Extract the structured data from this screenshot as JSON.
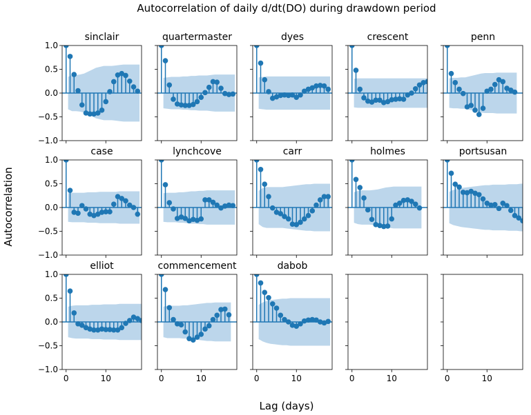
{
  "figure": {
    "suptitle": "Autocorrelation of daily d/dt(DO) during drawdown period",
    "supxlabel": "Lag (days)",
    "supylabel": "Autocorrelation"
  },
  "colors": {
    "stem": "#1f77b4",
    "band": "#a6c8e4",
    "axis": "#000000"
  },
  "chart_data": {
    "type": "acf-stem-grid",
    "rows": 3,
    "cols": 5,
    "xlim": [
      -1,
      19
    ],
    "ylim": [
      -1.0,
      1.0
    ],
    "xticks": [
      0,
      10
    ],
    "xtick_labels": [
      "0",
      "10"
    ],
    "yticks": [
      -1.0,
      -0.5,
      0.0,
      0.5,
      1.0
    ],
    "ytick_labels": [
      "−1.0",
      "−0.5",
      "0.0",
      "0.5",
      "1.0"
    ],
    "sharey": true,
    "panels": [
      {
        "title": "sinclair",
        "values": [
          1.0,
          0.77,
          0.39,
          0.05,
          -0.25,
          -0.42,
          -0.44,
          -0.44,
          -0.42,
          -0.36,
          -0.18,
          0.03,
          0.24,
          0.38,
          0.41,
          0.37,
          0.25,
          0.13,
          0.04
        ],
        "ci": [
          0.24,
          0.34,
          0.38,
          0.38,
          0.39,
          0.41,
          0.45,
          0.49,
          0.53,
          0.55,
          0.57,
          0.57,
          0.57,
          0.58,
          0.59,
          0.6,
          0.6,
          0.6,
          0.6
        ]
      },
      {
        "title": "quartermaster",
        "values": [
          1.0,
          0.68,
          0.17,
          -0.13,
          -0.23,
          -0.25,
          -0.26,
          -0.26,
          -0.24,
          -0.18,
          -0.09,
          0.01,
          0.12,
          0.24,
          0.23,
          0.1,
          -0.01,
          -0.03,
          -0.02
        ],
        "ci": [
          0.24,
          0.32,
          0.33,
          0.34,
          0.34,
          0.34,
          0.35,
          0.35,
          0.36,
          0.36,
          0.37,
          0.37,
          0.37,
          0.38,
          0.39,
          0.39,
          0.39,
          0.39,
          0.39
        ]
      },
      {
        "title": "dyes",
        "values": [
          1.0,
          0.63,
          0.28,
          0.03,
          -0.11,
          -0.08,
          -0.05,
          -0.04,
          -0.05,
          -0.04,
          -0.09,
          -0.04,
          0.04,
          0.08,
          0.11,
          0.15,
          0.16,
          0.15,
          0.08
        ],
        "ci": [
          0.24,
          0.33,
          0.34,
          0.35,
          0.35,
          0.35,
          0.35,
          0.35,
          0.35,
          0.35,
          0.35,
          0.35,
          0.35,
          0.35,
          0.35,
          0.35,
          0.35,
          0.35,
          0.35
        ]
      },
      {
        "title": "crescent",
        "values": [
          1.0,
          0.48,
          0.08,
          -0.1,
          -0.17,
          -0.19,
          -0.15,
          -0.15,
          -0.2,
          -0.18,
          -0.14,
          -0.13,
          -0.12,
          -0.13,
          -0.04,
          0.0,
          0.09,
          0.17,
          0.22,
          0.24
        ],
        "ci": [
          0.24,
          0.3,
          0.31,
          0.31,
          0.31,
          0.31,
          0.31,
          0.31,
          0.31,
          0.31,
          0.31,
          0.31,
          0.31,
          0.31,
          0.31,
          0.31,
          0.31,
          0.31,
          0.31,
          0.31
        ]
      },
      {
        "title": "penn",
        "values": [
          1.0,
          0.41,
          0.22,
          0.08,
          -0.01,
          -0.29,
          -0.26,
          -0.36,
          -0.45,
          -0.32,
          0.04,
          0.08,
          0.18,
          0.28,
          0.24,
          0.1,
          0.06,
          0.02
        ],
        "ci": [
          0.24,
          0.31,
          0.32,
          0.32,
          0.33,
          0.33,
          0.35,
          0.37,
          0.39,
          0.41,
          0.42,
          0.42,
          0.42,
          0.43,
          0.43,
          0.43,
          0.43,
          0.43
        ]
      },
      {
        "title": "case",
        "values": [
          1.0,
          0.36,
          -0.1,
          -0.12,
          0.04,
          -0.03,
          -0.14,
          -0.17,
          -0.14,
          -0.1,
          -0.09,
          -0.09,
          0.07,
          0.23,
          0.19,
          0.14,
          0.05,
          0.0,
          -0.14
        ],
        "ci": [
          0.24,
          0.3,
          0.31,
          0.31,
          0.31,
          0.31,
          0.32,
          0.32,
          0.32,
          0.33,
          0.33,
          0.33,
          0.33,
          0.33,
          0.34,
          0.34,
          0.34,
          0.34,
          0.34
        ]
      },
      {
        "title": "lynchcove",
        "values": [
          1.0,
          0.48,
          0.1,
          -0.03,
          -0.23,
          -0.2,
          -0.23,
          -0.28,
          -0.25,
          -0.27,
          -0.24,
          0.16,
          0.16,
          0.11,
          0.05,
          -0.01,
          0.03,
          0.05,
          0.04
        ],
        "ci": [
          0.24,
          0.3,
          0.31,
          0.31,
          0.31,
          0.32,
          0.32,
          0.33,
          0.34,
          0.34,
          0.35,
          0.35,
          0.36,
          0.36,
          0.36,
          0.36,
          0.36,
          0.36,
          0.36
        ]
      },
      {
        "title": "carr",
        "values": [
          1.0,
          0.8,
          0.49,
          0.23,
          -0.01,
          -0.1,
          -0.13,
          -0.19,
          -0.24,
          -0.35,
          -0.36,
          -0.31,
          -0.24,
          -0.17,
          -0.07,
          0.05,
          0.16,
          0.23,
          0.23
        ],
        "ci": [
          0.24,
          0.35,
          0.41,
          0.43,
          0.43,
          0.43,
          0.43,
          0.43,
          0.44,
          0.45,
          0.46,
          0.47,
          0.48,
          0.49,
          0.49,
          0.5,
          0.5,
          0.5,
          0.5
        ]
      },
      {
        "title": "holmes",
        "values": [
          1.0,
          0.59,
          0.42,
          0.2,
          -0.05,
          -0.25,
          -0.36,
          -0.38,
          -0.4,
          -0.39,
          -0.24,
          0.05,
          0.09,
          0.15,
          0.16,
          0.13,
          0.07,
          -0.01
        ],
        "ci": [
          0.24,
          0.32,
          0.35,
          0.36,
          0.36,
          0.36,
          0.37,
          0.38,
          0.4,
          0.42,
          0.43,
          0.44,
          0.44,
          0.44,
          0.44,
          0.44,
          0.44,
          0.44
        ]
      },
      {
        "title": "portsusan",
        "values": [
          1.0,
          0.72,
          0.49,
          0.43,
          0.32,
          0.31,
          0.34,
          0.3,
          0.27,
          0.18,
          0.09,
          0.05,
          0.06,
          -0.02,
          0.09,
          0.04,
          -0.06,
          -0.17,
          -0.22,
          -0.28
        ],
        "ci": [
          0.24,
          0.33,
          0.37,
          0.39,
          0.41,
          0.42,
          0.43,
          0.44,
          0.45,
          0.46,
          0.47,
          0.47,
          0.48,
          0.48,
          0.48,
          0.48,
          0.49,
          0.49,
          0.49,
          0.5
        ]
      },
      {
        "title": "elliot",
        "values": [
          1.0,
          0.65,
          0.19,
          -0.04,
          -0.07,
          -0.12,
          -0.15,
          -0.17,
          -0.17,
          -0.15,
          -0.16,
          -0.16,
          -0.17,
          -0.17,
          -0.12,
          -0.03,
          0.03,
          0.1,
          0.07,
          0.03
        ],
        "ci": [
          0.24,
          0.32,
          0.34,
          0.35,
          0.35,
          0.35,
          0.35,
          0.36,
          0.36,
          0.36,
          0.37,
          0.37,
          0.37,
          0.37,
          0.38,
          0.38,
          0.38,
          0.38,
          0.38,
          0.38
        ]
      },
      {
        "title": "commencement",
        "values": [
          1.0,
          0.68,
          0.3,
          0.05,
          -0.04,
          -0.06,
          -0.21,
          -0.35,
          -0.38,
          -0.32,
          -0.26,
          -0.15,
          -0.08,
          0.05,
          0.14,
          0.26,
          0.27,
          0.15
        ],
        "ci": [
          0.24,
          0.32,
          0.34,
          0.34,
          0.34,
          0.34,
          0.35,
          0.35,
          0.36,
          0.37,
          0.38,
          0.39,
          0.4,
          0.4,
          0.41,
          0.41,
          0.41,
          0.41
        ]
      },
      {
        "title": "dabob",
        "values": [
          1.0,
          0.82,
          0.62,
          0.51,
          0.38,
          0.29,
          0.14,
          0.05,
          0.0,
          -0.07,
          -0.09,
          -0.04,
          0.02,
          0.04,
          0.05,
          0.04,
          0.0,
          -0.02,
          0.01
        ],
        "ci": [
          0.24,
          0.36,
          0.41,
          0.44,
          0.46,
          0.47,
          0.48,
          0.49,
          0.49,
          0.5,
          0.5,
          0.5,
          0.5,
          0.5,
          0.5,
          0.5,
          0.5,
          0.5,
          0.5
        ]
      },
      {
        "title": "",
        "values": [],
        "ci": []
      },
      {
        "title": "",
        "values": [],
        "ci": []
      }
    ]
  }
}
